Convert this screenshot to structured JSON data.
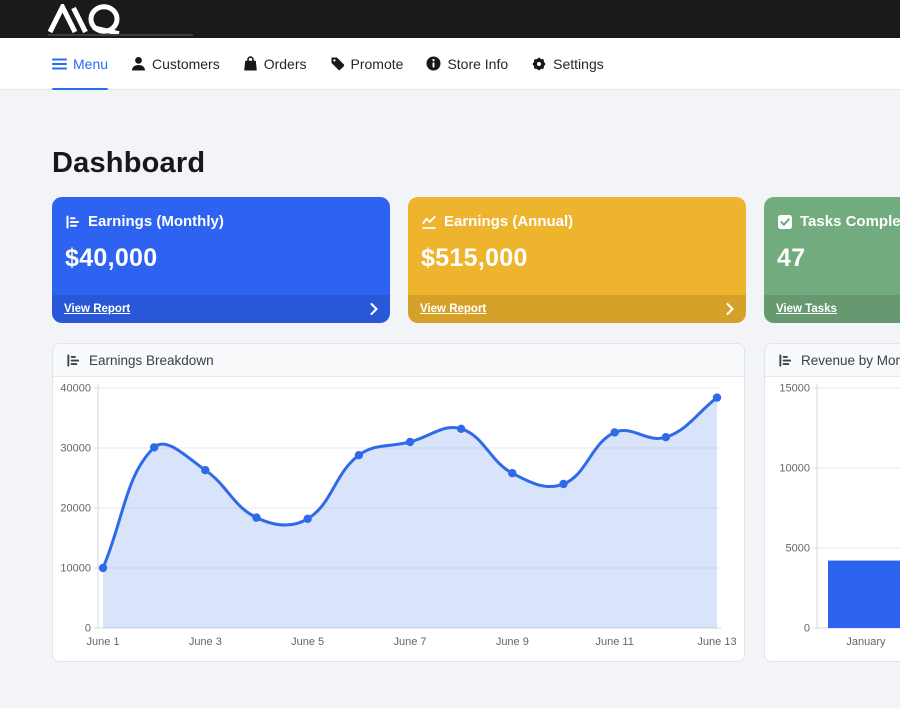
{
  "brand": {
    "name": "AQ"
  },
  "nav": {
    "items": [
      {
        "label": "Menu",
        "icon": "hamburger-icon",
        "active": true
      },
      {
        "label": "Customers",
        "icon": "person-icon",
        "active": false
      },
      {
        "label": "Orders",
        "icon": "shopping-bag-icon",
        "active": false
      },
      {
        "label": "Promote",
        "icon": "tag-icon",
        "active": false
      },
      {
        "label": "Store Info",
        "icon": "info-icon",
        "active": false
      },
      {
        "label": "Settings",
        "icon": "gear-icon",
        "active": false
      }
    ]
  },
  "page": {
    "title": "Dashboard"
  },
  "summary_cards": [
    {
      "title": "Earnings (Monthly)",
      "value": "$40,000",
      "link": "View Report",
      "icon": "bar-chart-icon",
      "color": "#2d63f0"
    },
    {
      "title": "Earnings (Annual)",
      "value": "$515,000",
      "link": "View Report",
      "icon": "line-chart-icon",
      "color": "#efb42e"
    },
    {
      "title": "Tasks Completed",
      "value": "47",
      "link": "View Tasks",
      "icon": "checkbox-icon",
      "color": "#72ab7d"
    }
  ],
  "colors": {
    "accent_blue": "#2b6bed",
    "topbar": "#1a1a1a",
    "chart_line": "#2f6ae8",
    "chart_fill": "rgba(47,106,232,0.18)",
    "bar_fill": "#2d64ed"
  },
  "chart_data": [
    {
      "type": "line",
      "title": "Earnings Breakdown",
      "x": [
        "June 1",
        "June 2",
        "June 3",
        "June 4",
        "June 5",
        "June 6",
        "June 7",
        "June 8",
        "June 9",
        "June 10",
        "June 11",
        "June 12",
        "June 13"
      ],
      "x_ticks_shown": [
        "June 1",
        "June 3",
        "June 5",
        "June 7",
        "June 9",
        "June 11",
        "June 13"
      ],
      "values": [
        10000,
        30100,
        26300,
        18400,
        18200,
        28800,
        31000,
        33200,
        25800,
        24000,
        32600,
        31800,
        38400
      ],
      "ylim": [
        0,
        40000
      ],
      "yticks": [
        0,
        10000,
        20000,
        30000,
        40000
      ],
      "grid": true,
      "legend": "none",
      "line_color": "#2f6ae8",
      "fill_color": "rgba(47,106,232,0.18)",
      "point_color": "#2f6ae8"
    },
    {
      "type": "bar",
      "title": "Revenue by Month",
      "categories": [
        "January"
      ],
      "values": [
        4215
      ],
      "ylim": [
        0,
        15000
      ],
      "yticks": [
        0,
        5000,
        10000,
        15000
      ],
      "grid": true,
      "legend": "none",
      "bar_color": "#2d64ed"
    }
  ]
}
